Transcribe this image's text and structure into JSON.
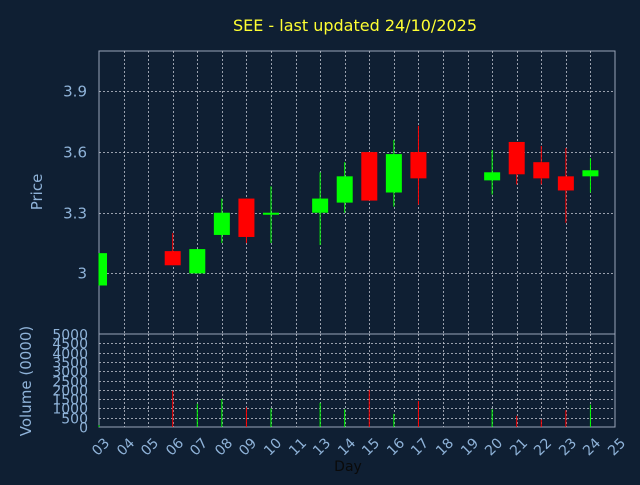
{
  "chart_data": [
    {
      "type": "candlestick",
      "title": "SEE - last updated 24/10/2025",
      "ylabel": "Price",
      "ylim": [
        2.7,
        4.1
      ],
      "yticks": [
        "3",
        "3.3",
        "3.6",
        "3.9"
      ],
      "ytick_values": [
        3.0,
        3.3,
        3.6,
        3.9
      ],
      "grid": true,
      "up_color": "#00ff00",
      "down_color": "#ff0000",
      "categories": [
        "03",
        "04",
        "05",
        "06",
        "07",
        "08",
        "09",
        "10",
        "11",
        "13",
        "14",
        "15",
        "16",
        "17",
        "18",
        "19",
        "20",
        "21",
        "22",
        "23",
        "24",
        "25"
      ],
      "candles": [
        {
          "day": "03",
          "open": 2.94,
          "high": 3.1,
          "low": 2.94,
          "close": 3.1
        },
        {
          "day": "06",
          "open": 3.11,
          "high": 3.2,
          "low": 3.04,
          "close": 3.04
        },
        {
          "day": "07",
          "open": 3.0,
          "high": 3.12,
          "low": 3.0,
          "close": 3.12
        },
        {
          "day": "08",
          "open": 3.19,
          "high": 3.37,
          "low": 3.15,
          "close": 3.3
        },
        {
          "day": "09",
          "open": 3.37,
          "high": 3.37,
          "low": 3.15,
          "close": 3.18
        },
        {
          "day": "10",
          "open": 3.29,
          "high": 3.43,
          "low": 3.15,
          "close": 3.3
        },
        {
          "day": "13",
          "open": 3.3,
          "high": 3.5,
          "low": 3.14,
          "close": 3.37
        },
        {
          "day": "14",
          "open": 3.35,
          "high": 3.55,
          "low": 3.3,
          "close": 3.48
        },
        {
          "day": "15",
          "open": 3.6,
          "high": 3.6,
          "low": 3.36,
          "close": 3.36
        },
        {
          "day": "16",
          "open": 3.4,
          "high": 3.66,
          "low": 3.33,
          "close": 3.59
        },
        {
          "day": "17",
          "open": 3.6,
          "high": 3.73,
          "low": 3.34,
          "close": 3.47
        },
        {
          "day": "20",
          "open": 3.46,
          "high": 3.61,
          "low": 3.39,
          "close": 3.5
        },
        {
          "day": "21",
          "open": 3.65,
          "high": 3.65,
          "low": 3.44,
          "close": 3.49
        },
        {
          "day": "22",
          "open": 3.55,
          "high": 3.63,
          "low": 3.44,
          "close": 3.47
        },
        {
          "day": "23",
          "open": 3.48,
          "high": 3.62,
          "low": 3.25,
          "close": 3.41
        },
        {
          "day": "24",
          "open": 3.48,
          "high": 3.57,
          "low": 3.4,
          "close": 3.51
        }
      ]
    },
    {
      "type": "bar",
      "ylabel": "Volume (0000)",
      "xlabel": "Day",
      "ylim": [
        0,
        5000
      ],
      "yticks": [
        "5000",
        "4500",
        "4000",
        "3500",
        "3000",
        "2500",
        "2000",
        "1500",
        "1000",
        "500",
        "0"
      ],
      "ytick_values": [
        5000,
        4500,
        4000,
        3500,
        3000,
        2500,
        2000,
        1500,
        1000,
        500,
        0
      ],
      "categories": [
        "03",
        "04",
        "05",
        "06",
        "07",
        "08",
        "09",
        "10",
        "11",
        "13",
        "14",
        "15",
        "16",
        "17",
        "18",
        "19",
        "20",
        "21",
        "22",
        "23",
        "24",
        "25"
      ],
      "bars": [
        {
          "day": "03",
          "value": 100,
          "direction": "up"
        },
        {
          "day": "06",
          "value": 1950,
          "direction": "down"
        },
        {
          "day": "07",
          "value": 1250,
          "direction": "up"
        },
        {
          "day": "08",
          "value": 1500,
          "direction": "up"
        },
        {
          "day": "09",
          "value": 1050,
          "direction": "down"
        },
        {
          "day": "10",
          "value": 1000,
          "direction": "up"
        },
        {
          "day": "13",
          "value": 1300,
          "direction": "up"
        },
        {
          "day": "14",
          "value": 950,
          "direction": "up"
        },
        {
          "day": "15",
          "value": 2000,
          "direction": "down"
        },
        {
          "day": "16",
          "value": 700,
          "direction": "up"
        },
        {
          "day": "17",
          "value": 1400,
          "direction": "down"
        },
        {
          "day": "20",
          "value": 950,
          "direction": "up"
        },
        {
          "day": "21",
          "value": 600,
          "direction": "down"
        },
        {
          "day": "22",
          "value": 400,
          "direction": "down"
        },
        {
          "day": "23",
          "value": 900,
          "direction": "down"
        },
        {
          "day": "24",
          "value": 1200,
          "direction": "up"
        }
      ]
    }
  ]
}
